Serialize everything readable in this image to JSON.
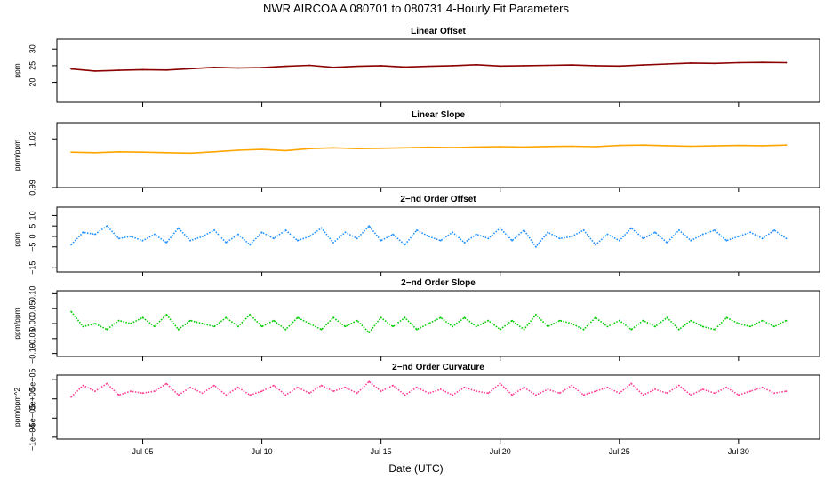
{
  "title": "NWR   AIRCOA A   080701 to 080731   4-Hourly Fit Parameters",
  "xlabel": "Date (UTC)",
  "x_ticks": [
    "Jul 05",
    "Jul 10",
    "Jul 15",
    "Jul 20",
    "Jul 25",
    "Jul 30"
  ],
  "chart_data": [
    {
      "type": "line",
      "title": "Linear Offset",
      "ylabel": "ppm",
      "color": "#8b0000",
      "xlim": [
        1.4,
        33.4
      ],
      "ylim": [
        14,
        33
      ],
      "yticks": [
        20,
        25,
        30
      ],
      "ytick_labels": [
        "20",
        "25",
        "30"
      ],
      "series": [
        {
          "x": [
            2,
            3,
            4,
            5,
            6,
            7,
            8,
            9,
            10,
            11,
            12,
            13,
            14,
            15,
            16,
            17,
            18,
            19,
            20,
            21,
            22,
            23,
            24,
            25,
            26,
            27,
            28,
            29,
            30,
            31,
            32
          ],
          "values": [
            24,
            23.4,
            23.6,
            23.8,
            23.7,
            24.1,
            24.5,
            24.3,
            24.4,
            24.8,
            25.1,
            24.5,
            24.8,
            25.0,
            24.6,
            24.8,
            25.0,
            25.3,
            24.9,
            25.0,
            25.1,
            25.2,
            25.0,
            24.9,
            25.2,
            25.5,
            25.8,
            25.7,
            25.9,
            26.0,
            25.9
          ]
        }
      ]
    },
    {
      "type": "line",
      "title": "Linear Slope",
      "ylabel": "ppm/ppm",
      "color": "#ffa500",
      "xlim": [
        1.4,
        33.4
      ],
      "ylim": [
        0.99,
        1.03
      ],
      "yticks": [
        0.99,
        1.02
      ],
      "ytick_labels": [
        "0.99",
        "1.02"
      ],
      "series": [
        {
          "x": [
            2,
            3,
            4,
            5,
            6,
            7,
            8,
            9,
            10,
            11,
            12,
            13,
            14,
            15,
            16,
            17,
            18,
            19,
            20,
            21,
            22,
            23,
            24,
            25,
            26,
            27,
            28,
            29,
            30,
            31,
            32
          ],
          "values": [
            1.0118,
            1.0115,
            1.012,
            1.0118,
            1.0115,
            1.0112,
            1.012,
            1.013,
            1.0135,
            1.0128,
            1.014,
            1.0145,
            1.014,
            1.0142,
            1.0145,
            1.0148,
            1.0146,
            1.015,
            1.0152,
            1.015,
            1.0153,
            1.0155,
            1.0152,
            1.016,
            1.0162,
            1.0158,
            1.0155,
            1.0157,
            1.016,
            1.0158,
            1.0162
          ]
        }
      ]
    },
    {
      "type": "line",
      "title": "2−nd Order Offset",
      "ylabel": "ppm",
      "color": "#1e90ff",
      "xlim": [
        1.4,
        33.4
      ],
      "ylim": [
        -17,
        14
      ],
      "yticks": [
        -15,
        -5,
        0,
        5,
        10
      ],
      "ytick_labels": [
        "−15",
        "−5",
        "0",
        "5",
        "10"
      ],
      "series": [
        {
          "x": [
            2,
            2.5,
            3,
            3.5,
            4,
            4.5,
            5,
            5.5,
            6,
            6.5,
            7,
            7.5,
            8,
            8.5,
            9,
            9.5,
            10,
            10.5,
            11,
            11.5,
            12,
            12.5,
            13,
            13.5,
            14,
            14.5,
            15,
            15.5,
            16,
            16.5,
            17,
            17.5,
            18,
            18.5,
            19,
            19.5,
            20,
            20.5,
            21,
            21.5,
            22,
            22.5,
            23,
            23.5,
            24,
            24.5,
            25,
            25.5,
            26,
            26.5,
            27,
            27.5,
            28,
            28.5,
            29,
            29.5,
            30,
            30.5,
            31,
            31.5,
            32
          ],
          "values": [
            -4,
            2,
            1,
            5,
            -1,
            0,
            -2,
            1,
            -3,
            4,
            -2,
            0,
            3,
            -3,
            1,
            -4,
            2,
            -1,
            3,
            -2,
            0,
            4,
            -3,
            2,
            -1,
            5,
            -2,
            1,
            -4,
            3,
            0,
            -2,
            2,
            -3,
            1,
            -1,
            4,
            -2,
            3,
            -5,
            2,
            -1,
            0,
            3,
            -4,
            1,
            -2,
            4,
            -1,
            2,
            -3,
            3,
            -2,
            1,
            3,
            -2,
            0,
            2,
            -1,
            3,
            -1
          ]
        }
      ]
    },
    {
      "type": "line",
      "title": "2−nd Order Slope",
      "ylabel": "ppm/ppm",
      "color": "#00cd00",
      "xlim": [
        1.4,
        33.4
      ],
      "ylim": [
        -0.11,
        0.11
      ],
      "yticks": [
        -0.1,
        -0.05,
        0.0,
        0.05,
        0.1
      ],
      "ytick_labels": [
        "−0.10",
        "−0.05",
        "0.00",
        "0.05",
        "0.10"
      ],
      "series": [
        {
          "x": [
            2,
            2.5,
            3,
            3.5,
            4,
            4.5,
            5,
            5.5,
            6,
            6.5,
            7,
            7.5,
            8,
            8.5,
            9,
            9.5,
            10,
            10.5,
            11,
            11.5,
            12,
            12.5,
            13,
            13.5,
            14,
            14.5,
            15,
            15.5,
            16,
            16.5,
            17,
            17.5,
            18,
            18.5,
            19,
            19.5,
            20,
            20.5,
            21,
            21.5,
            22,
            22.5,
            23,
            23.5,
            24,
            24.5,
            25,
            25.5,
            26,
            26.5,
            27,
            27.5,
            28,
            28.5,
            29,
            29.5,
            30,
            30.5,
            31,
            31.5,
            32
          ],
          "values": [
            0.04,
            -0.01,
            0.0,
            -0.02,
            0.01,
            0.0,
            0.02,
            -0.01,
            0.03,
            -0.02,
            0.01,
            0.0,
            -0.01,
            0.02,
            -0.01,
            0.03,
            -0.01,
            0.01,
            -0.02,
            0.02,
            0.0,
            -0.02,
            0.02,
            -0.01,
            0.01,
            -0.03,
            0.02,
            -0.01,
            0.02,
            -0.02,
            0.0,
            0.02,
            -0.01,
            0.02,
            -0.01,
            0.01,
            -0.02,
            0.01,
            -0.02,
            0.03,
            -0.01,
            0.01,
            0.0,
            -0.02,
            0.02,
            -0.01,
            0.01,
            -0.02,
            0.01,
            -0.01,
            0.02,
            -0.02,
            0.01,
            -0.01,
            -0.02,
            0.02,
            0.0,
            -0.01,
            0.01,
            -0.01,
            0.01
          ]
        }
      ]
    },
    {
      "type": "line",
      "title": "2−nd Order Curvature",
      "ylabel": "ppm/ppm^2",
      "color": "#ff3e96",
      "xlim": [
        1.4,
        33.4
      ],
      "ylim": [
        -0.000105,
        6.2e-05
      ],
      "yticks": [
        -0.0001,
        -5e-05,
        0.0,
        5e-05
      ],
      "ytick_labels": [
        "−1e−04",
        "−5e−05",
        "0e+00",
        "5e−05"
      ],
      "series": [
        {
          "x": [
            2,
            2.5,
            3,
            3.5,
            4,
            4.5,
            5,
            5.5,
            6,
            6.5,
            7,
            7.5,
            8,
            8.5,
            9,
            9.5,
            10,
            10.5,
            11,
            11.5,
            12,
            12.5,
            13,
            13.5,
            14,
            14.5,
            15,
            15.5,
            16,
            16.5,
            17,
            17.5,
            18,
            18.5,
            19,
            19.5,
            20,
            20.5,
            21,
            21.5,
            22,
            22.5,
            23,
            23.5,
            24,
            24.5,
            25,
            25.5,
            26,
            26.5,
            27,
            27.5,
            28,
            28.5,
            29,
            29.5,
            30,
            30.5,
            31,
            31.5,
            32
          ],
          "values": [
            5e-06,
            3.5e-05,
            2e-05,
            4e-05,
            1e-05,
            2e-05,
            1.5e-05,
            2e-05,
            4e-05,
            1e-05,
            3e-05,
            1.5e-05,
            3.5e-05,
            1e-05,
            3e-05,
            1e-05,
            2e-05,
            3.5e-05,
            1e-05,
            3e-05,
            1.5e-05,
            3.5e-05,
            2e-05,
            3e-05,
            1.5e-05,
            4.5e-05,
            2e-05,
            3.5e-05,
            1e-05,
            3e-05,
            1.5e-05,
            2.5e-05,
            1e-05,
            3e-05,
            2e-05,
            1.5e-05,
            4e-05,
            1e-05,
            3e-05,
            1e-05,
            2.5e-05,
            1.5e-05,
            3.5e-05,
            1e-05,
            2e-05,
            3e-05,
            1.5e-05,
            4e-05,
            1e-05,
            2.5e-05,
            1.5e-05,
            3.5e-05,
            1e-05,
            2.5e-05,
            1.5e-05,
            3e-05,
            1e-05,
            2e-05,
            3e-05,
            1.5e-05,
            2e-05
          ]
        }
      ]
    }
  ]
}
